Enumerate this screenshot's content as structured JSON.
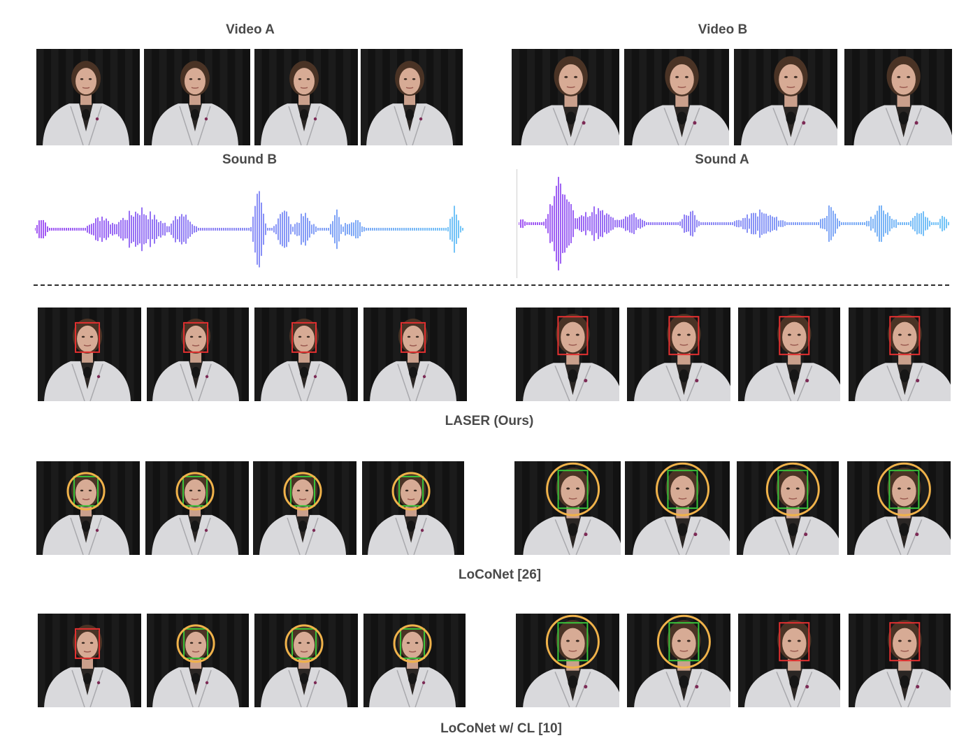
{
  "top": {
    "video_a_title": "Video A",
    "video_b_title": "Video B",
    "sound_b_title": "Sound B",
    "sound_a_title": "Sound A"
  },
  "rows": [
    {
      "method": "LASER (Ours)",
      "left_marks": [
        "red-box",
        "red-box",
        "red-box",
        "red-box"
      ],
      "right_marks": [
        "red-box",
        "red-box",
        "red-box",
        "red-box"
      ]
    },
    {
      "method": "LoCoNet [26]",
      "left_marks": [
        "green-box-orange-circle",
        "green-box-orange-circle",
        "green-box-orange-circle",
        "green-box-orange-circle"
      ],
      "right_marks": [
        "green-box-orange-circle",
        "green-box-orange-circle",
        "green-box-orange-circle",
        "green-box-orange-circle"
      ]
    },
    {
      "method": "LoCoNet w/ CL [10]",
      "left_marks": [
        "red-box",
        "green-box-orange-circle",
        "green-box-orange-circle",
        "green-box-orange-circle"
      ],
      "right_marks": [
        "green-box-orange-circle",
        "green-box-orange-circle",
        "red-box",
        "red-box"
      ]
    }
  ],
  "colors": {
    "speaking_box": "#e53030",
    "not_speaking_box": "#39c43a",
    "error_circle": "#f0b24a",
    "wave_start": "#8b2cf0",
    "wave_end": "#4fb7f5",
    "label_text": "#4a4a4a",
    "background": "#141414"
  }
}
